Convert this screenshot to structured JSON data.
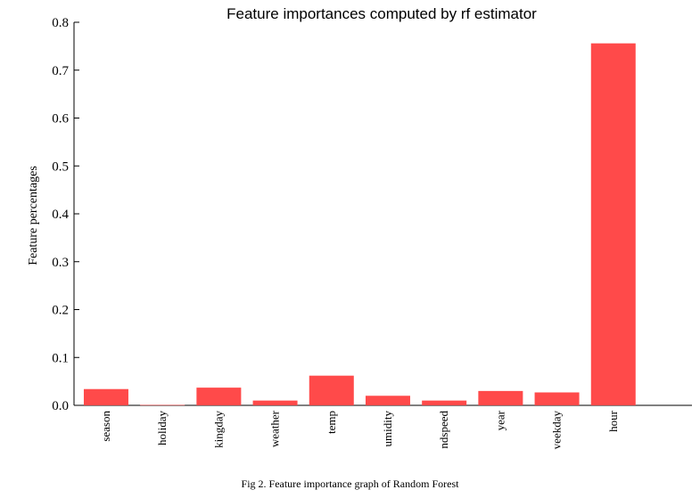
{
  "chart_data": {
    "type": "bar",
    "title": "Feature importances computed by rf estimator",
    "xlabel": "",
    "ylabel": "Feature percentages",
    "ylim": [
      0,
      0.8
    ],
    "yticks": [
      "0.0",
      "0.1",
      "0.2",
      "0.3",
      "0.4",
      "0.5",
      "0.6",
      "0.7",
      "0.8"
    ],
    "categories": [
      "season",
      "holiday",
      "kingday",
      "weather",
      "temp",
      "umidity",
      "ndspeed",
      "year",
      "veekday",
      "hour"
    ],
    "values": [
      0.034,
      0.001,
      0.037,
      0.01,
      0.062,
      0.02,
      0.01,
      0.03,
      0.027,
      0.756
    ],
    "bar_color": "#ff4a4a",
    "grid": false
  },
  "caption": "Fig 2. Feature importance graph of Random Forest"
}
